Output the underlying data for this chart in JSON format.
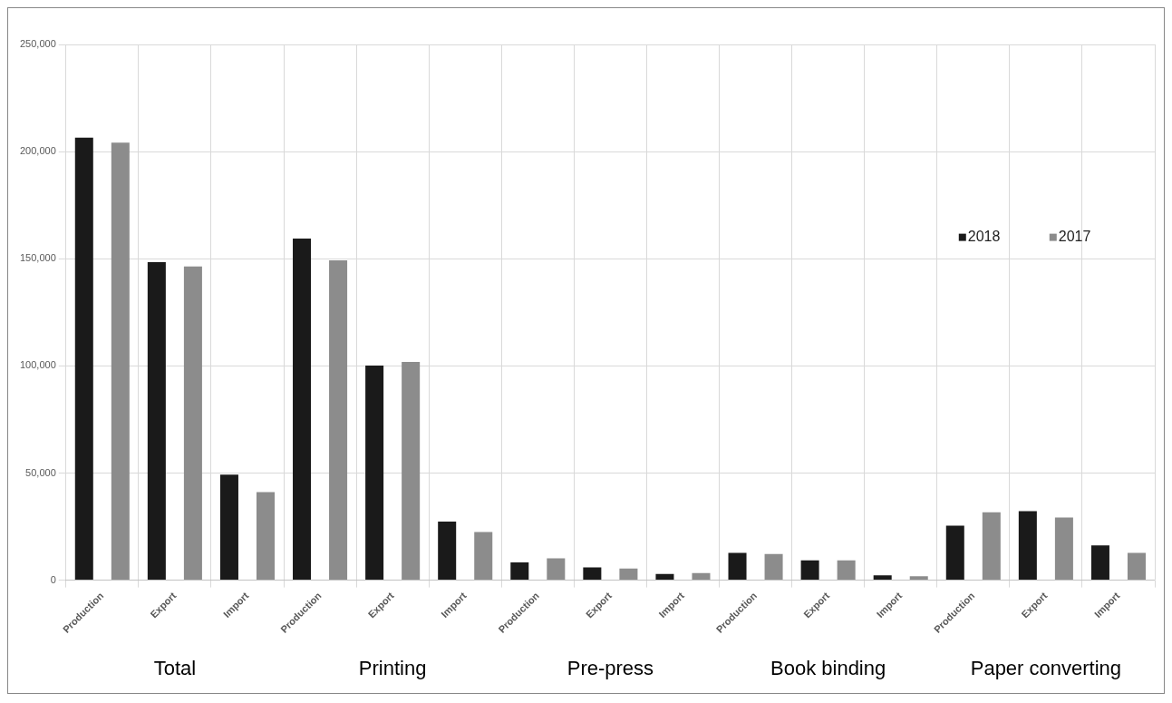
{
  "chart_data": {
    "type": "bar",
    "categories": [
      "Production",
      "Export",
      "Import",
      "Production",
      "Export",
      "Import",
      "Production",
      "Export",
      "Import",
      "Production",
      "Export",
      "Import",
      "Production",
      "Export",
      "Import"
    ],
    "series": [
      {
        "name": "2018",
        "color": "#1a1a1a",
        "values": [
          206500,
          148400,
          49300,
          159400,
          100200,
          27400,
          8300,
          6000,
          2900,
          12700,
          9300,
          2300,
          25500,
          32200,
          16200
        ]
      },
      {
        "name": "2017",
        "color": "#8c8c8c",
        "values": [
          204200,
          146400,
          41100,
          149300,
          101800,
          22500,
          10200,
          5400,
          3300,
          12200,
          9300,
          1900,
          31700,
          29300,
          12700
        ]
      }
    ],
    "ylim": [
      0,
      250000
    ],
    "yticks": [
      0,
      {
        "value": 50000,
        "label": "50,000"
      },
      {
        "value": 100000,
        "label": "100,000"
      },
      {
        "value": 150000,
        "label": "150,000"
      },
      {
        "value": 200000,
        "label": "200,000"
      },
      {
        "value": 250000,
        "label": "250,000"
      }
    ],
    "grid": true,
    "legend": "right",
    "annotations": [
      "Total",
      "Printing",
      "Pre-press",
      "Book binding",
      "Paper converting"
    ]
  }
}
